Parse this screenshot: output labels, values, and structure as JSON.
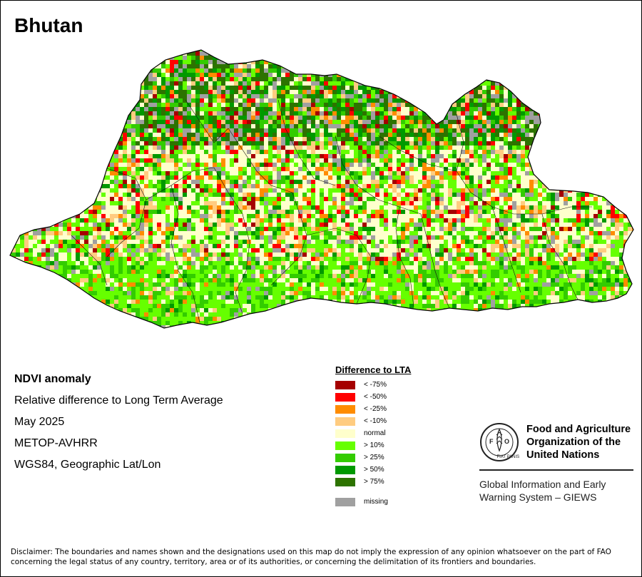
{
  "title": "Bhutan",
  "info": {
    "heading": "NDVI anomaly",
    "line1": "Relative difference to Long Term Average",
    "line2": "May 2025",
    "line3": "METOP-AVHRR",
    "line4": "WGS84, Geographic Lat/Lon"
  },
  "legend": {
    "title": "Difference to LTA",
    "items": [
      {
        "label": "< -75%",
        "color": "#a50000"
      },
      {
        "label": "< -50%",
        "color": "#ff0000"
      },
      {
        "label": "< -25%",
        "color": "#ff8c00"
      },
      {
        "label": "< -10%",
        "color": "#ffcc80"
      },
      {
        "label": "normal",
        "color": "#ffffcc"
      },
      {
        "label": "> 10%",
        "color": "#66ff00"
      },
      {
        "label": "> 25%",
        "color": "#33cc00"
      },
      {
        "label": "> 50%",
        "color": "#009900"
      },
      {
        "label": "> 75%",
        "color": "#2d7300"
      }
    ],
    "missing": {
      "label": "missing",
      "color": "#a0a0a0"
    }
  },
  "fao": {
    "name_line1": "Food and Agriculture",
    "name_line2": "Organization of the",
    "name_line3": "United Nations",
    "emblem_letters": "FAO",
    "emblem_motto": "FIAT PANIS",
    "giews_line1": "Global Information and Early",
    "giews_line2": "Warning System – GIEWS"
  },
  "disclaimer": "Disclaimer: The boundaries and names shown and the designations used on this map do not imply the expression of any opinion whatsoever on the part of FAO concerning the legal status of any country, territory, area or of its authorities, or concerning the delimitation of its frontiers and boundaries.",
  "map_zones": {
    "north_mountains": "mixed dark green / grey / red",
    "south_lowlands": "bright green",
    "central": "normal / pale orange"
  }
}
